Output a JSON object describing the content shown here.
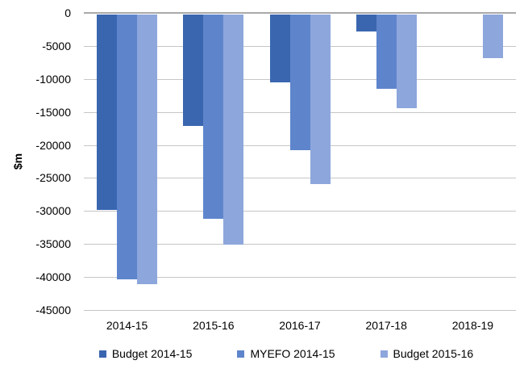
{
  "chart_data": {
    "type": "bar",
    "title": "",
    "ylabel": "$m",
    "xlabel": "",
    "categories": [
      "2014-15",
      "2015-16",
      "2016-17",
      "2017-18",
      "2018-19"
    ],
    "series": [
      {
        "name": "Budget 2014-15",
        "color": "#3a66b0",
        "values": [
          -29800,
          -17100,
          -10500,
          -2800,
          null
        ]
      },
      {
        "name": "MYEFO 2014-15",
        "color": "#5e85cc",
        "values": [
          -40400,
          -31200,
          -20800,
          -11500,
          null
        ]
      },
      {
        "name": "Budget 2015-16",
        "color": "#8da6dc",
        "values": [
          -41100,
          -35100,
          -25900,
          -14400,
          -6900
        ]
      }
    ],
    "ylim": [
      -45000,
      0
    ],
    "yticks": [
      0,
      -5000,
      -10000,
      -15000,
      -20000,
      -25000,
      -30000,
      -35000,
      -40000,
      -45000
    ],
    "grid": true,
    "legend_position": "bottom",
    "gridline_color": "#c6c6c6",
    "zero_line_color": "#a9a9a9"
  }
}
